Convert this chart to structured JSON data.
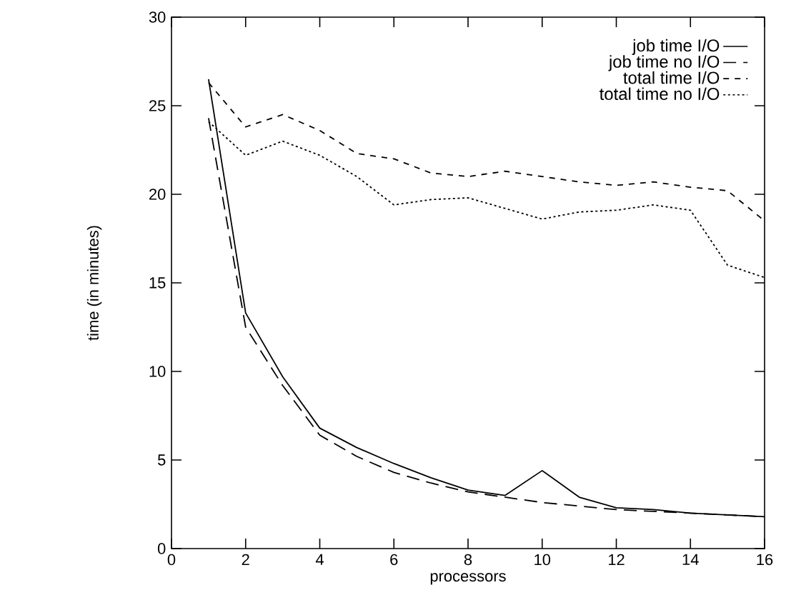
{
  "chart_data": {
    "type": "line",
    "xlabel": "processors",
    "ylabel": "time (in minutes)",
    "x": [
      1,
      2,
      3,
      4,
      5,
      6,
      7,
      8,
      9,
      10,
      11,
      12,
      13,
      14,
      15,
      16
    ],
    "series": [
      {
        "name": "job time I/O",
        "color": "#000000",
        "line_style": "solid",
        "values": [
          26.5,
          13.3,
          9.7,
          6.8,
          5.7,
          4.8,
          4.0,
          3.3,
          3.0,
          4.4,
          2.9,
          2.3,
          2.2,
          2.0,
          1.9,
          1.8
        ]
      },
      {
        "name": "job time no I/O",
        "color": "#000000",
        "line_style": "dashed",
        "values": [
          24.3,
          12.5,
          9.2,
          6.4,
          5.2,
          4.3,
          3.7,
          3.2,
          2.9,
          2.6,
          2.4,
          2.2,
          2.1,
          2.0,
          1.9,
          1.8
        ]
      },
      {
        "name": "total time I/O",
        "color": "#000000",
        "line_style": "dashed",
        "values": [
          26.3,
          23.8,
          24.5,
          23.6,
          22.3,
          22.0,
          21.2,
          21.0,
          21.3,
          21.0,
          20.7,
          20.5,
          20.7,
          20.4,
          20.2,
          18.5
        ]
      },
      {
        "name": "total time no I/O",
        "color": "#000000",
        "line_style": "dotted",
        "values": [
          24.1,
          22.2,
          23.0,
          22.2,
          21.0,
          19.4,
          19.7,
          19.8,
          19.2,
          18.6,
          19.0,
          19.1,
          19.4,
          19.1,
          16.0,
          15.3
        ]
      }
    ],
    "xlim": [
      0,
      16
    ],
    "xticks": [
      0,
      2,
      4,
      6,
      8,
      10,
      12,
      14,
      16
    ],
    "ylim": [
      0,
      30
    ],
    "yticks": [
      0,
      5,
      10,
      15,
      20,
      25,
      30
    ],
    "grid": false,
    "legend": "top right",
    "marker": "none"
  }
}
